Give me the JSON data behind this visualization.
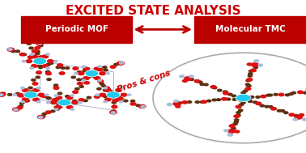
{
  "title": "EXCITED STATE ANALYSIS",
  "title_color": "#cc0000",
  "title_fontsize": 11,
  "title_weight": "bold",
  "left_label": "Periodic MOF",
  "right_label": "Molecular TMC",
  "label_fontsize": 7.5,
  "label_color": "white",
  "label_bg_color": "#bb0000",
  "pros_cons_text": "Pros & cons",
  "pros_cons_color": "#cc0000",
  "pros_cons_fontsize": 7.5,
  "arrow_color": "#bb0000",
  "background_color": "white",
  "fig_width": 3.78,
  "fig_height": 1.89,
  "dpi": 100
}
